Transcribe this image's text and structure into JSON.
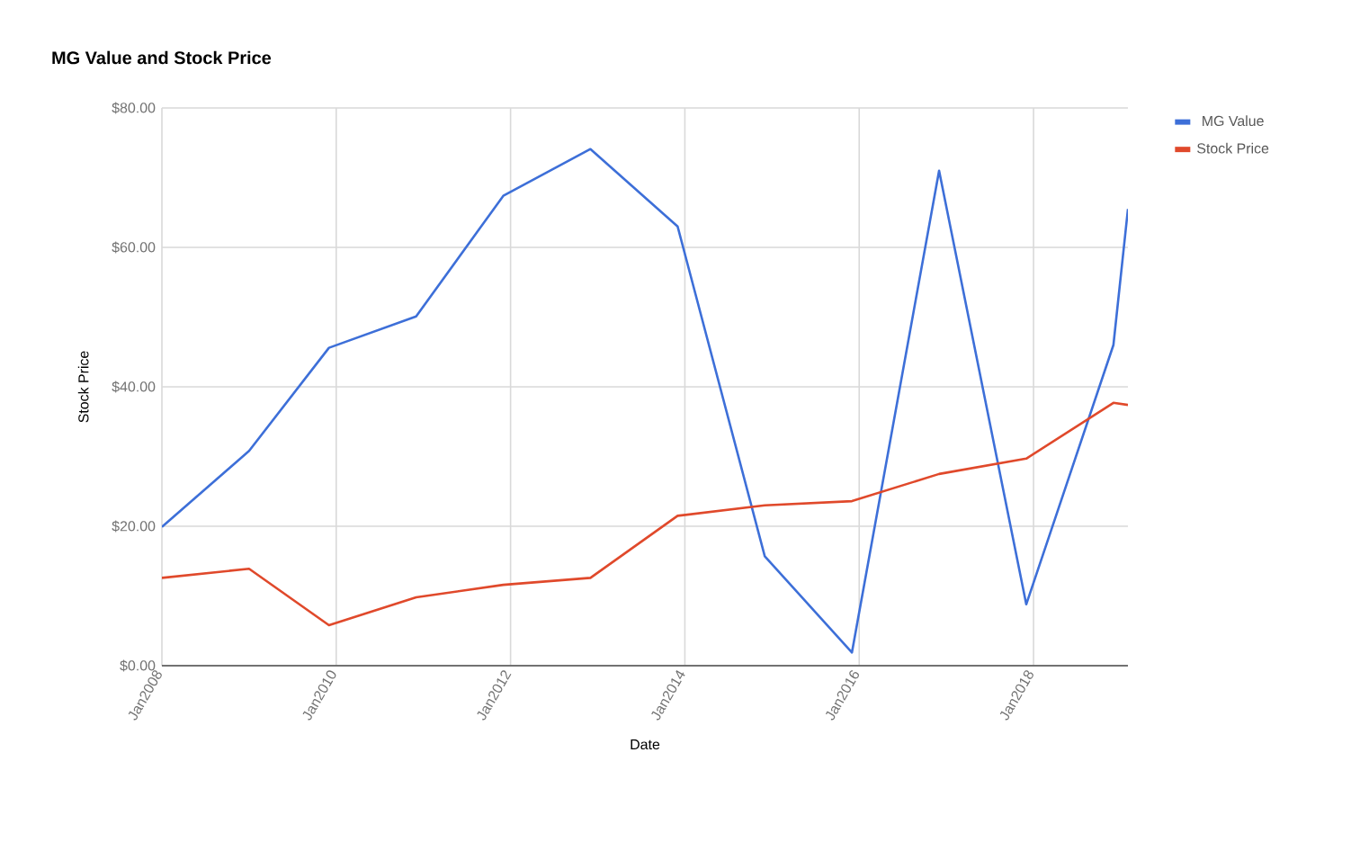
{
  "chart_data": {
    "type": "line",
    "title": "MG Value and Stock Price",
    "xlabel": "Date",
    "ylabel": "Stock Price",
    "x": [
      "2008-01",
      "2009-01",
      "2009-12",
      "2010-12",
      "2011-12",
      "2012-12",
      "2013-12",
      "2014-12",
      "2015-12",
      "2016-12",
      "2017-12",
      "2018-12",
      "2019-02"
    ],
    "series": [
      {
        "name": "MG Value",
        "color": "#3d6fd8",
        "values": [
          19.9,
          30.8,
          45.6,
          50.1,
          67.4,
          74.1,
          63.0,
          15.7,
          1.9,
          71.0,
          8.8,
          46.0,
          65.5
        ]
      },
      {
        "name": "Stock Price",
        "color": "#e0492b",
        "values": [
          12.6,
          13.9,
          5.8,
          9.8,
          11.6,
          12.6,
          21.5,
          23.0,
          23.6,
          27.5,
          29.7,
          37.7,
          37.4
        ]
      }
    ],
    "xlim": [
      "2008-01",
      "2019-02"
    ],
    "xticks": [
      {
        "value": "2008-01",
        "label": "Jan2008"
      },
      {
        "value": "2010-01",
        "label": "Jan2010"
      },
      {
        "value": "2012-01",
        "label": "Jan2012"
      },
      {
        "value": "2014-01",
        "label": "Jan2014"
      },
      {
        "value": "2016-01",
        "label": "Jan2016"
      },
      {
        "value": "2018-01",
        "label": "Jan2018"
      }
    ],
    "ylim": [
      0,
      80
    ],
    "yticks": [
      {
        "value": 0,
        "label": "$0.00"
      },
      {
        "value": 20,
        "label": "$20.00"
      },
      {
        "value": 40,
        "label": "$40.00"
      },
      {
        "value": 60,
        "label": "$60.00"
      },
      {
        "value": 80,
        "label": "$80.00"
      }
    ],
    "grid": true,
    "legend": "top right",
    "marker": "none",
    "line_style": "solid"
  }
}
